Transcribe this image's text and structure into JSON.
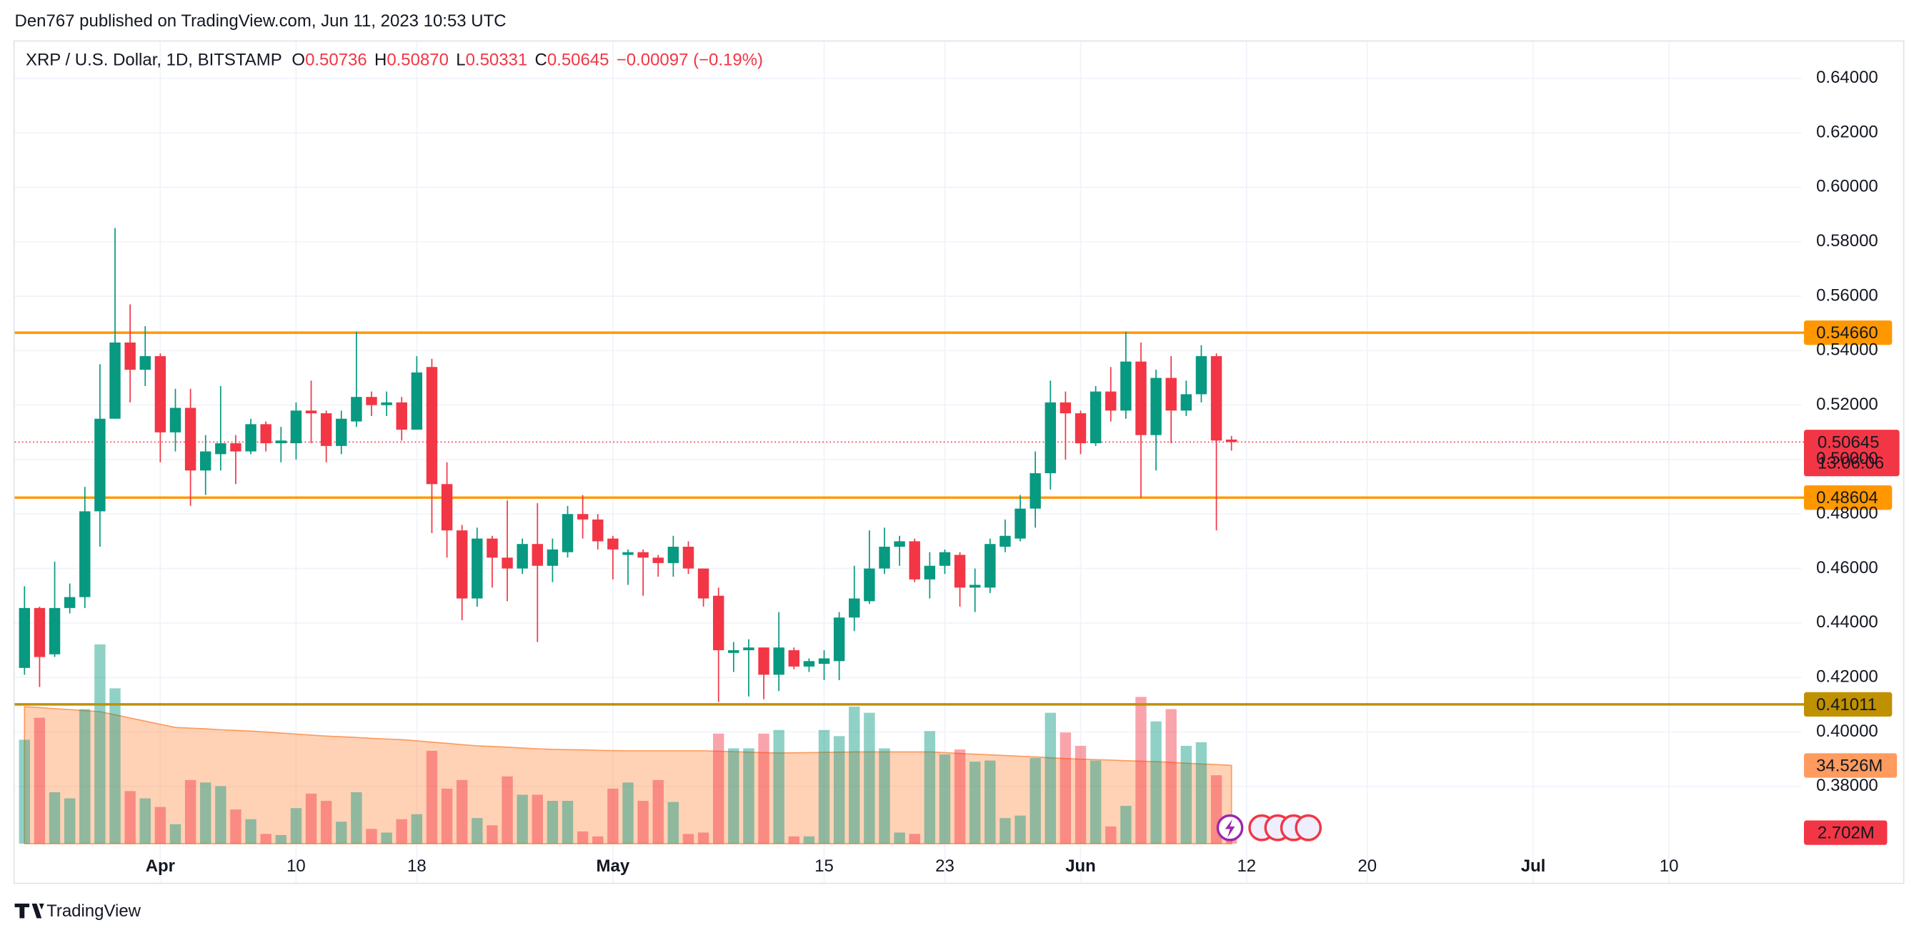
{
  "header": "Den767 published on TradingView.com, Jun 11, 2023 10:53 UTC",
  "footer": "TradingView",
  "legend": {
    "symbol": "XRP / U.S. Dollar, 1D, BITSTAMP",
    "items": [
      {
        "key": "O",
        "value": "0.50736"
      },
      {
        "key": "H",
        "value": "0.50870"
      },
      {
        "key": "L",
        "value": "0.50331"
      },
      {
        "key": "C",
        "value": "0.50645"
      }
    ],
    "change": "−0.00097 (−0.19%)"
  },
  "chart_data": {
    "type": "candlestick",
    "x": [
      "2023-03-23",
      "2023-03-24",
      "2023-03-25",
      "2023-03-26",
      "2023-03-27",
      "2023-03-28",
      "2023-03-29",
      "2023-03-30",
      "2023-03-31",
      "2023-04-01",
      "2023-04-02",
      "2023-04-03",
      "2023-04-04",
      "2023-04-05",
      "2023-04-06",
      "2023-04-07",
      "2023-04-08",
      "2023-04-09",
      "2023-04-10",
      "2023-04-11",
      "2023-04-12",
      "2023-04-13",
      "2023-04-14",
      "2023-04-15",
      "2023-04-16",
      "2023-04-17",
      "2023-04-18",
      "2023-04-19",
      "2023-04-20",
      "2023-04-21",
      "2023-04-22",
      "2023-04-23",
      "2023-04-24",
      "2023-04-25",
      "2023-04-26",
      "2023-04-27",
      "2023-04-28",
      "2023-04-29",
      "2023-04-30",
      "2023-05-01",
      "2023-05-02",
      "2023-05-03",
      "2023-05-04",
      "2023-05-05",
      "2023-05-06",
      "2023-05-07",
      "2023-05-08",
      "2023-05-09",
      "2023-05-10",
      "2023-05-11",
      "2023-05-12",
      "2023-05-13",
      "2023-05-14",
      "2023-05-15",
      "2023-05-16",
      "2023-05-17",
      "2023-05-18",
      "2023-05-19",
      "2023-05-20",
      "2023-05-21",
      "2023-05-22",
      "2023-05-23",
      "2023-05-24",
      "2023-05-25",
      "2023-05-26",
      "2023-05-27",
      "2023-05-28",
      "2023-05-29",
      "2023-05-30",
      "2023-05-31",
      "2023-06-01",
      "2023-06-02",
      "2023-06-03",
      "2023-06-04",
      "2023-06-05",
      "2023-06-06",
      "2023-06-07",
      "2023-06-08",
      "2023-06-09",
      "2023-06-10",
      "2023-06-11"
    ],
    "open": [
      0.4235,
      0.4455,
      0.4285,
      0.4455,
      0.4495,
      0.481,
      0.515,
      0.543,
      0.533,
      0.538,
      0.51,
      0.519,
      0.496,
      0.502,
      0.506,
      0.503,
      0.513,
      0.506,
      0.506,
      0.518,
      0.517,
      0.505,
      0.514,
      0.523,
      0.52,
      0.521,
      0.511,
      0.534,
      0.491,
      0.474,
      0.449,
      0.471,
      0.464,
      0.46,
      0.469,
      0.461,
      0.466,
      0.48,
      0.478,
      0.471,
      0.465,
      0.466,
      0.464,
      0.462,
      0.468,
      0.46,
      0.45,
      0.429,
      0.43,
      0.431,
      0.421,
      0.43,
      0.424,
      0.425,
      0.426,
      0.442,
      0.448,
      0.46,
      0.468,
      0.47,
      0.456,
      0.461,
      0.465,
      0.453,
      0.453,
      0.468,
      0.471,
      0.482,
      0.495,
      0.521,
      0.517,
      0.506,
      0.525,
      0.518,
      0.536,
      0.509,
      0.53,
      0.518,
      0.524,
      0.538,
      0.50736
    ],
    "high": [
      0.4535,
      0.446,
      0.4625,
      0.4545,
      0.49,
      0.535,
      0.585,
      0.557,
      0.549,
      0.539,
      0.526,
      0.526,
      0.509,
      0.527,
      0.509,
      0.515,
      0.514,
      0.512,
      0.521,
      0.529,
      0.518,
      0.518,
      0.547,
      0.525,
      0.525,
      0.523,
      0.538,
      0.537,
      0.499,
      0.476,
      0.475,
      0.472,
      0.485,
      0.471,
      0.484,
      0.471,
      0.483,
      0.487,
      0.48,
      0.472,
      0.467,
      0.467,
      0.465,
      0.472,
      0.47,
      0.46,
      0.453,
      0.433,
      0.434,
      0.431,
      0.444,
      0.431,
      0.427,
      0.43,
      0.444,
      0.461,
      0.474,
      0.475,
      0.472,
      0.471,
      0.466,
      0.467,
      0.466,
      0.46,
      0.471,
      0.478,
      0.487,
      0.503,
      0.529,
      0.525,
      0.518,
      0.527,
      0.534,
      0.547,
      0.543,
      0.533,
      0.538,
      0.529,
      0.542,
      0.539,
      0.5087
    ],
    "low": [
      0.421,
      0.4165,
      0.4275,
      0.4435,
      0.4455,
      0.468,
      0.515,
      0.521,
      0.527,
      0.499,
      0.503,
      0.483,
      0.487,
      0.496,
      0.491,
      0.502,
      0.503,
      0.499,
      0.5,
      0.506,
      0.499,
      0.502,
      0.512,
      0.516,
      0.516,
      0.507,
      0.511,
      0.473,
      0.464,
      0.441,
      0.446,
      0.453,
      0.448,
      0.458,
      0.433,
      0.455,
      0.464,
      0.471,
      0.467,
      0.456,
      0.454,
      0.45,
      0.457,
      0.457,
      0.458,
      0.446,
      0.411,
      0.422,
      0.413,
      0.412,
      0.415,
      0.423,
      0.422,
      0.419,
      0.419,
      0.437,
      0.447,
      0.458,
      0.461,
      0.455,
      0.449,
      0.458,
      0.446,
      0.444,
      0.451,
      0.466,
      0.47,
      0.475,
      0.489,
      0.5,
      0.502,
      0.505,
      0.514,
      0.515,
      0.486,
      0.496,
      0.506,
      0.516,
      0.521,
      0.474,
      0.50331
    ],
    "close": [
      0.4455,
      0.4275,
      0.4455,
      0.4495,
      0.481,
      0.515,
      0.543,
      0.533,
      0.538,
      0.51,
      0.519,
      0.496,
      0.503,
      0.506,
      0.503,
      0.513,
      0.506,
      0.507,
      0.518,
      0.517,
      0.505,
      0.515,
      0.523,
      0.52,
      0.521,
      0.511,
      0.532,
      0.491,
      0.474,
      0.449,
      0.471,
      0.464,
      0.46,
      0.469,
      0.461,
      0.467,
      0.48,
      0.478,
      0.47,
      0.467,
      0.466,
      0.464,
      0.462,
      0.468,
      0.46,
      0.449,
      0.43,
      0.43,
      0.431,
      0.421,
      0.431,
      0.424,
      0.426,
      0.427,
      0.442,
      0.449,
      0.46,
      0.468,
      0.47,
      0.456,
      0.461,
      0.466,
      0.453,
      0.454,
      0.469,
      0.472,
      0.482,
      0.495,
      0.521,
      0.517,
      0.506,
      0.525,
      0.518,
      0.536,
      0.509,
      0.53,
      0.518,
      0.524,
      0.538,
      0.507,
      0.50645
    ],
    "volume": [
      45.9,
      55.6,
      22.7,
      20.0,
      59.4,
      88.0,
      68.6,
      23.2,
      20.0,
      16.2,
      8.6,
      28.1,
      27.0,
      25.4,
      15.1,
      10.8,
      4.3,
      3.8,
      15.7,
      22.1,
      18.9,
      9.7,
      22.7,
      6.5,
      4.9,
      10.8,
      13.0,
      41.0,
      24.3,
      28.1,
      11.3,
      8.1,
      29.7,
      21.6,
      21.6,
      18.9,
      18.9,
      5.4,
      3.2,
      24.3,
      27.0,
      18.9,
      28.1,
      18.4,
      4.3,
      4.9,
      48.6,
      42.1,
      42.1,
      48.6,
      50.2,
      3.2,
      3.2,
      50.2,
      47.5,
      60.5,
      57.8,
      42.1,
      4.9,
      4.3,
      49.7,
      39.4,
      41.6,
      36.2,
      36.7,
      11.3,
      12.4,
      37.8,
      57.8,
      49.1,
      43.2,
      36.7,
      7.6,
      16.7,
      64.8,
      54.0,
      59.4,
      43.2,
      44.8,
      30.2,
      2.702
    ],
    "volume_ma": [
      60.5,
      60.1,
      59.6,
      59.2,
      58.7,
      58.3,
      56.9,
      55.5,
      54.1,
      52.7,
      51.3,
      51.0,
      50.7,
      50.3,
      50.0,
      49.7,
      49.3,
      48.8,
      48.4,
      47.9,
      47.5,
      47.2,
      46.9,
      46.5,
      46.2,
      45.9,
      45.4,
      44.8,
      44.3,
      43.7,
      43.2,
      42.9,
      42.6,
      42.2,
      41.9,
      41.6,
      41.5,
      41.4,
      41.2,
      41.1,
      41.0,
      41.0,
      41.0,
      41.0,
      41.0,
      41.0,
      40.8,
      40.6,
      40.4,
      40.2,
      40.0,
      40.1,
      40.2,
      40.3,
      40.4,
      40.5,
      40.5,
      40.5,
      40.5,
      40.5,
      40.5,
      40.2,
      39.8,
      39.5,
      39.2,
      38.9,
      38.6,
      38.3,
      37.9,
      37.6,
      37.3,
      37.1,
      36.9,
      36.6,
      36.4,
      36.2,
      35.9,
      35.5,
      35.2,
      34.9,
      34.526
    ],
    "volume_ma_label": "34.526M",
    "volume_last_label": "2.702M",
    "volume_ylim": [
      0,
      354.2
    ],
    "ylim": [
      0.3446,
      0.6535
    ],
    "yticks": [
      {
        "value": 0.38,
        "label": "0.38000"
      },
      {
        "value": 0.4,
        "label": "0.40000"
      },
      {
        "value": 0.42,
        "label": "0.42000"
      },
      {
        "value": 0.44,
        "label": "0.44000"
      },
      {
        "value": 0.46,
        "label": "0.46000"
      },
      {
        "value": 0.48,
        "label": "0.48000"
      },
      {
        "value": 0.5,
        "label": "0.50000"
      },
      {
        "value": 0.52,
        "label": "0.52000"
      },
      {
        "value": 0.54,
        "label": "0.54000"
      },
      {
        "value": 0.56,
        "label": "0.56000"
      },
      {
        "value": 0.58,
        "label": "0.58000"
      },
      {
        "value": 0.6,
        "label": "0.60000"
      },
      {
        "value": 0.62,
        "label": "0.62000"
      },
      {
        "value": 0.64,
        "label": "0.64000"
      }
    ],
    "xlim": [
      "2023-03-22",
      "2023-07-20"
    ],
    "xticks": [
      {
        "value": "2023-04-01",
        "label": "Apr"
      },
      {
        "value": "2023-04-10",
        "label": "10"
      },
      {
        "value": "2023-04-18",
        "label": "18"
      },
      {
        "value": "2023-05-01",
        "label": "May"
      },
      {
        "value": "2023-05-15",
        "label": "15"
      },
      {
        "value": "2023-05-23",
        "label": "23"
      },
      {
        "value": "2023-06-01",
        "label": "Jun"
      },
      {
        "value": "2023-06-12",
        "label": "12"
      },
      {
        "value": "2023-06-20",
        "label": "20"
      },
      {
        "value": "2023-07-01",
        "label": "Jul"
      },
      {
        "value": "2023-07-10",
        "label": "10"
      }
    ],
    "hlines": [
      {
        "value": 0.5466,
        "label": "0.54660",
        "color": "#ff9800"
      },
      {
        "value": 0.48604,
        "label": "0.48604",
        "color": "#ff9800"
      },
      {
        "value": 0.41011,
        "label": "0.41011",
        "color": "#bf9000"
      }
    ],
    "last_price_label": "0.50645",
    "countdown": "13:06:06",
    "colors": {
      "up": "#089981",
      "down": "#f23645",
      "volume_ma": "#ff9b5e"
    },
    "grid": true
  }
}
